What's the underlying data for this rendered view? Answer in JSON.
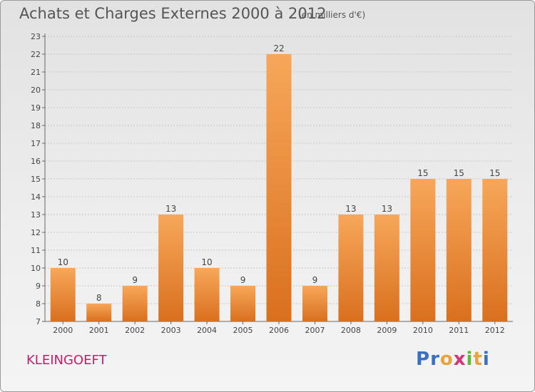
{
  "header": {
    "title": "Achats et Charges Externes 2000 à 2012",
    "subtitle": "(en milliers d'€)"
  },
  "footer": {
    "commune": "KLEINGOEFT",
    "logo_letters": [
      "P",
      "r",
      "o",
      "x",
      "i",
      "t",
      "i"
    ],
    "logo_colors": [
      "#3a6fc4",
      "#3a6fc4",
      "#e8a43a",
      "#d6337a",
      "#67b43a",
      "#e8a43a",
      "#3a6fc4"
    ]
  },
  "colors": {
    "bar_top": "#f7a75a",
    "bar_bottom": "#d9701e",
    "grid": "#c8c8c8",
    "axis": "#666666",
    "text": "#444444"
  },
  "chart_data": {
    "type": "bar",
    "title": "Achats et Charges Externes 2000 à 2012",
    "subtitle": "(en milliers d'€)",
    "categories": [
      "2000",
      "2001",
      "2002",
      "2003",
      "2004",
      "2005",
      "2006",
      "2007",
      "2008",
      "2009",
      "2010",
      "2011",
      "2012"
    ],
    "values": [
      10,
      8,
      9,
      13,
      10,
      9,
      22,
      9,
      13,
      13,
      15,
      15,
      15
    ],
    "ylim": [
      7,
      23
    ],
    "yticks": [
      7,
      8,
      9,
      10,
      11,
      12,
      13,
      14,
      15,
      16,
      17,
      18,
      19,
      20,
      21,
      22,
      23
    ],
    "grid": true,
    "data_labels": true
  }
}
